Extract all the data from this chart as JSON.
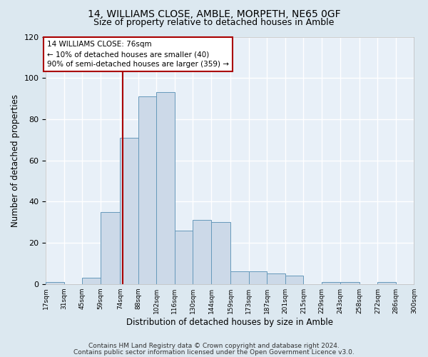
{
  "title1": "14, WILLIAMS CLOSE, AMBLE, MORPETH, NE65 0GF",
  "title2": "Size of property relative to detached houses in Amble",
  "xlabel": "Distribution of detached houses by size in Amble",
  "ylabel": "Number of detached properties",
  "bin_edges": [
    17,
    31,
    45,
    59,
    74,
    88,
    102,
    116,
    130,
    144,
    159,
    173,
    187,
    201,
    215,
    229,
    243,
    258,
    272,
    286,
    300
  ],
  "bar_heights": [
    1,
    0,
    3,
    35,
    71,
    91,
    93,
    26,
    31,
    30,
    6,
    6,
    5,
    4,
    0,
    1,
    1,
    0,
    1,
    0
  ],
  "bar_color": "#ccd9e8",
  "bar_edgecolor": "#6699bb",
  "property_line_x": 76,
  "property_line_color": "#aa0000",
  "annotation_text": "14 WILLIAMS CLOSE: 76sqm\n← 10% of detached houses are smaller (40)\n90% of semi-detached houses are larger (359) →",
  "annotation_box_color": "#ffffff",
  "annotation_box_edgecolor": "#aa0000",
  "ylim": [
    0,
    120
  ],
  "yticks": [
    0,
    20,
    40,
    60,
    80,
    100,
    120
  ],
  "xtick_labels": [
    "17sqm",
    "31sqm",
    "45sqm",
    "59sqm",
    "74sqm",
    "88sqm",
    "102sqm",
    "116sqm",
    "130sqm",
    "144sqm",
    "159sqm",
    "173sqm",
    "187sqm",
    "201sqm",
    "215sqm",
    "229sqm",
    "243sqm",
    "258sqm",
    "272sqm",
    "286sqm",
    "300sqm"
  ],
  "footer1": "Contains HM Land Registry data © Crown copyright and database right 2024.",
  "footer2": "Contains public sector information licensed under the Open Government Licence v3.0.",
  "background_color": "#dce8f0",
  "plot_background_color": "#e8f0f8",
  "grid_color": "#ffffff",
  "title1_fontsize": 10,
  "title2_fontsize": 9,
  "xlabel_fontsize": 8.5,
  "ylabel_fontsize": 8.5,
  "footer_fontsize": 6.5,
  "annotation_fontsize": 7.5,
  "ytick_fontsize": 8,
  "xtick_fontsize": 6.5
}
